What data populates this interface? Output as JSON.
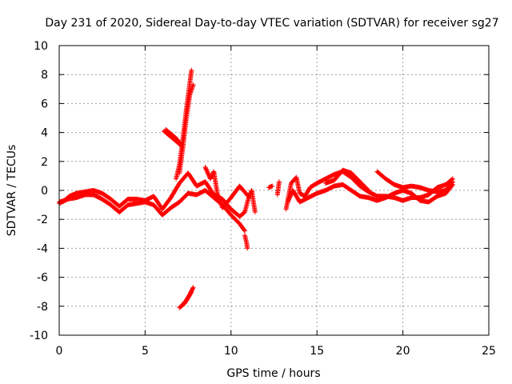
{
  "chart_data": {
    "type": "scatter",
    "title": "Day 231 of 2020, Sidereal Day-to-day VTEC variation (SDTVAR) for receiver sg27",
    "xlabel": "GPS time / hours",
    "ylabel": "SDTVAR / TECUs",
    "xlim": [
      0,
      25
    ],
    "ylim": [
      -10,
      10
    ],
    "x_ticks": [
      0,
      5,
      10,
      15,
      20,
      25
    ],
    "y_ticks": [
      -10,
      -8,
      -6,
      -4,
      -2,
      0,
      2,
      4,
      6,
      8,
      10
    ],
    "x_tick_labels": [
      "0",
      "5",
      "10",
      "15",
      "20",
      "25"
    ],
    "y_tick_labels": [
      "-10",
      "-8",
      "-6",
      "-4",
      "-2",
      "0",
      "2",
      "4",
      "6",
      "8",
      "10"
    ],
    "grid": true,
    "marker": "+",
    "color": "#ff0000",
    "series": [
      {
        "name": "SDTVAR sg27",
        "segments": [
          [
            [
              0.0,
              -0.8
            ],
            [
              0.3,
              -0.7
            ],
            [
              0.6,
              -0.4
            ],
            [
              1.0,
              -0.2
            ],
            [
              1.5,
              -0.1
            ],
            [
              2.0,
              0.0
            ],
            [
              2.5,
              -0.2
            ],
            [
              3.0,
              -0.6
            ],
            [
              3.5,
              -1.1
            ],
            [
              4.0,
              -0.6
            ],
            [
              4.5,
              -0.6
            ],
            [
              5.0,
              -0.7
            ],
            [
              5.5,
              -0.4
            ],
            [
              6.0,
              -1.3
            ],
            [
              6.5,
              -0.5
            ],
            [
              7.0,
              0.5
            ],
            [
              7.5,
              1.2
            ],
            [
              8.0,
              0.3
            ],
            [
              8.5,
              0.6
            ],
            [
              9.0,
              -0.3
            ],
            [
              9.5,
              -0.6
            ],
            [
              10.0,
              -1.3
            ],
            [
              10.5,
              -1.8
            ],
            [
              10.8,
              -1.5
            ],
            [
              11.0,
              -0.6
            ],
            [
              11.2,
              0.0
            ],
            [
              11.4,
              -1.5
            ]
          ],
          [
            [
              0.0,
              -0.9
            ],
            [
              0.5,
              -0.6
            ],
            [
              1.0,
              -0.5
            ],
            [
              1.5,
              -0.3
            ],
            [
              2.0,
              -0.3
            ],
            [
              2.5,
              -0.6
            ],
            [
              3.0,
              -1.0
            ],
            [
              3.5,
              -1.5
            ],
            [
              4.0,
              -1.0
            ],
            [
              4.5,
              -0.9
            ],
            [
              5.0,
              -0.8
            ],
            [
              5.5,
              -1.0
            ],
            [
              6.0,
              -1.7
            ],
            [
              6.5,
              -1.2
            ],
            [
              7.0,
              -0.8
            ],
            [
              7.5,
              -0.2
            ],
            [
              8.0,
              -0.3
            ],
            [
              8.5,
              0.0
            ],
            [
              9.0,
              -0.5
            ],
            [
              9.5,
              -1.0
            ],
            [
              10.0,
              -1.7
            ],
            [
              10.5,
              -2.3
            ],
            [
              10.8,
              -2.8
            ]
          ],
          [
            [
              6.1,
              4.1
            ],
            [
              6.4,
              3.8
            ],
            [
              6.7,
              3.5
            ],
            [
              7.0,
              3.2
            ],
            [
              7.1,
              3.1
            ]
          ],
          [
            [
              6.2,
              4.2
            ],
            [
              6.5,
              3.9
            ],
            [
              6.8,
              3.6
            ],
            [
              7.0,
              3.3
            ]
          ],
          [
            [
              6.8,
              0.8
            ],
            [
              7.0,
              1.8
            ],
            [
              7.2,
              3.6
            ],
            [
              7.4,
              5.6
            ],
            [
              7.6,
              7.4
            ],
            [
              7.7,
              8.3
            ]
          ],
          [
            [
              7.0,
              1.2
            ],
            [
              7.2,
              3.0
            ],
            [
              7.4,
              5.0
            ],
            [
              7.6,
              6.6
            ],
            [
              7.8,
              7.3
            ]
          ],
          [
            [
              7.0,
              -8.1
            ],
            [
              7.3,
              -7.8
            ],
            [
              7.6,
              -7.2
            ],
            [
              7.8,
              -6.7
            ]
          ],
          [
            [
              7.1,
              -8.0
            ],
            [
              7.4,
              -7.6
            ],
            [
              7.7,
              -7.0
            ]
          ],
          [
            [
              8.5,
              1.6
            ],
            [
              8.8,
              0.8
            ],
            [
              9.0,
              1.3
            ],
            [
              9.2,
              -0.2
            ],
            [
              9.5,
              -1.2
            ],
            [
              10.0,
              -0.5
            ],
            [
              10.5,
              0.3
            ],
            [
              11.0,
              -0.4
            ]
          ],
          [
            [
              10.8,
              -3.1
            ],
            [
              10.9,
              -3.6
            ],
            [
              10.95,
              -4.0
            ]
          ],
          [
            [
              12.2,
              0.2
            ],
            [
              12.4,
              0.3
            ]
          ],
          [
            [
              12.7,
              -0.3
            ],
            [
              12.8,
              0.6
            ]
          ],
          [
            [
              13.2,
              -1.3
            ],
            [
              13.5,
              0.5
            ],
            [
              13.8,
              0.9
            ],
            [
              14.0,
              -0.2
            ],
            [
              14.3,
              -0.4
            ],
            [
              14.6,
              0.2
            ],
            [
              15.0,
              0.5
            ],
            [
              15.5,
              0.8
            ],
            [
              16.0,
              1.1
            ],
            [
              16.5,
              1.3
            ],
            [
              17.0,
              0.9
            ],
            [
              17.5,
              0.3
            ],
            [
              18.0,
              -0.1
            ],
            [
              18.5,
              -0.4
            ],
            [
              19.0,
              -0.4
            ],
            [
              19.5,
              -0.5
            ],
            [
              20.0,
              -0.7
            ],
            [
              20.5,
              -0.5
            ],
            [
              21.0,
              -0.5
            ],
            [
              21.5,
              -0.3
            ],
            [
              22.0,
              0.2
            ],
            [
              22.5,
              0.4
            ],
            [
              22.9,
              0.8
            ]
          ],
          [
            [
              13.3,
              -0.8
            ],
            [
              13.6,
              0.0
            ],
            [
              14.0,
              -0.8
            ],
            [
              14.5,
              -0.5
            ],
            [
              15.0,
              -0.2
            ],
            [
              15.5,
              0.0
            ],
            [
              16.0,
              0.3
            ],
            [
              16.5,
              0.4
            ],
            [
              17.0,
              0.0
            ],
            [
              17.5,
              -0.4
            ],
            [
              18.0,
              -0.5
            ],
            [
              18.5,
              -0.7
            ],
            [
              19.0,
              -0.5
            ],
            [
              19.5,
              -0.2
            ],
            [
              20.0,
              0.0
            ],
            [
              20.5,
              -0.2
            ],
            [
              21.0,
              -0.7
            ],
            [
              21.5,
              -0.8
            ],
            [
              22.0,
              -0.4
            ],
            [
              22.5,
              -0.2
            ],
            [
              22.9,
              0.4
            ]
          ],
          [
            [
              18.5,
              1.3
            ],
            [
              19.0,
              0.8
            ],
            [
              19.5,
              0.4
            ],
            [
              20.0,
              0.2
            ],
            [
              20.5,
              0.3
            ],
            [
              21.0,
              0.2
            ],
            [
              21.5,
              0.0
            ],
            [
              22.0,
              -0.1
            ],
            [
              22.5,
              0.0
            ],
            [
              22.9,
              0.6
            ]
          ],
          [
            [
              15.5,
              0.5
            ],
            [
              16.0,
              0.7
            ],
            [
              16.5,
              1.4
            ],
            [
              17.0,
              1.2
            ],
            [
              17.5,
              0.6
            ],
            [
              18.0,
              0.0
            ]
          ]
        ]
      }
    ]
  }
}
